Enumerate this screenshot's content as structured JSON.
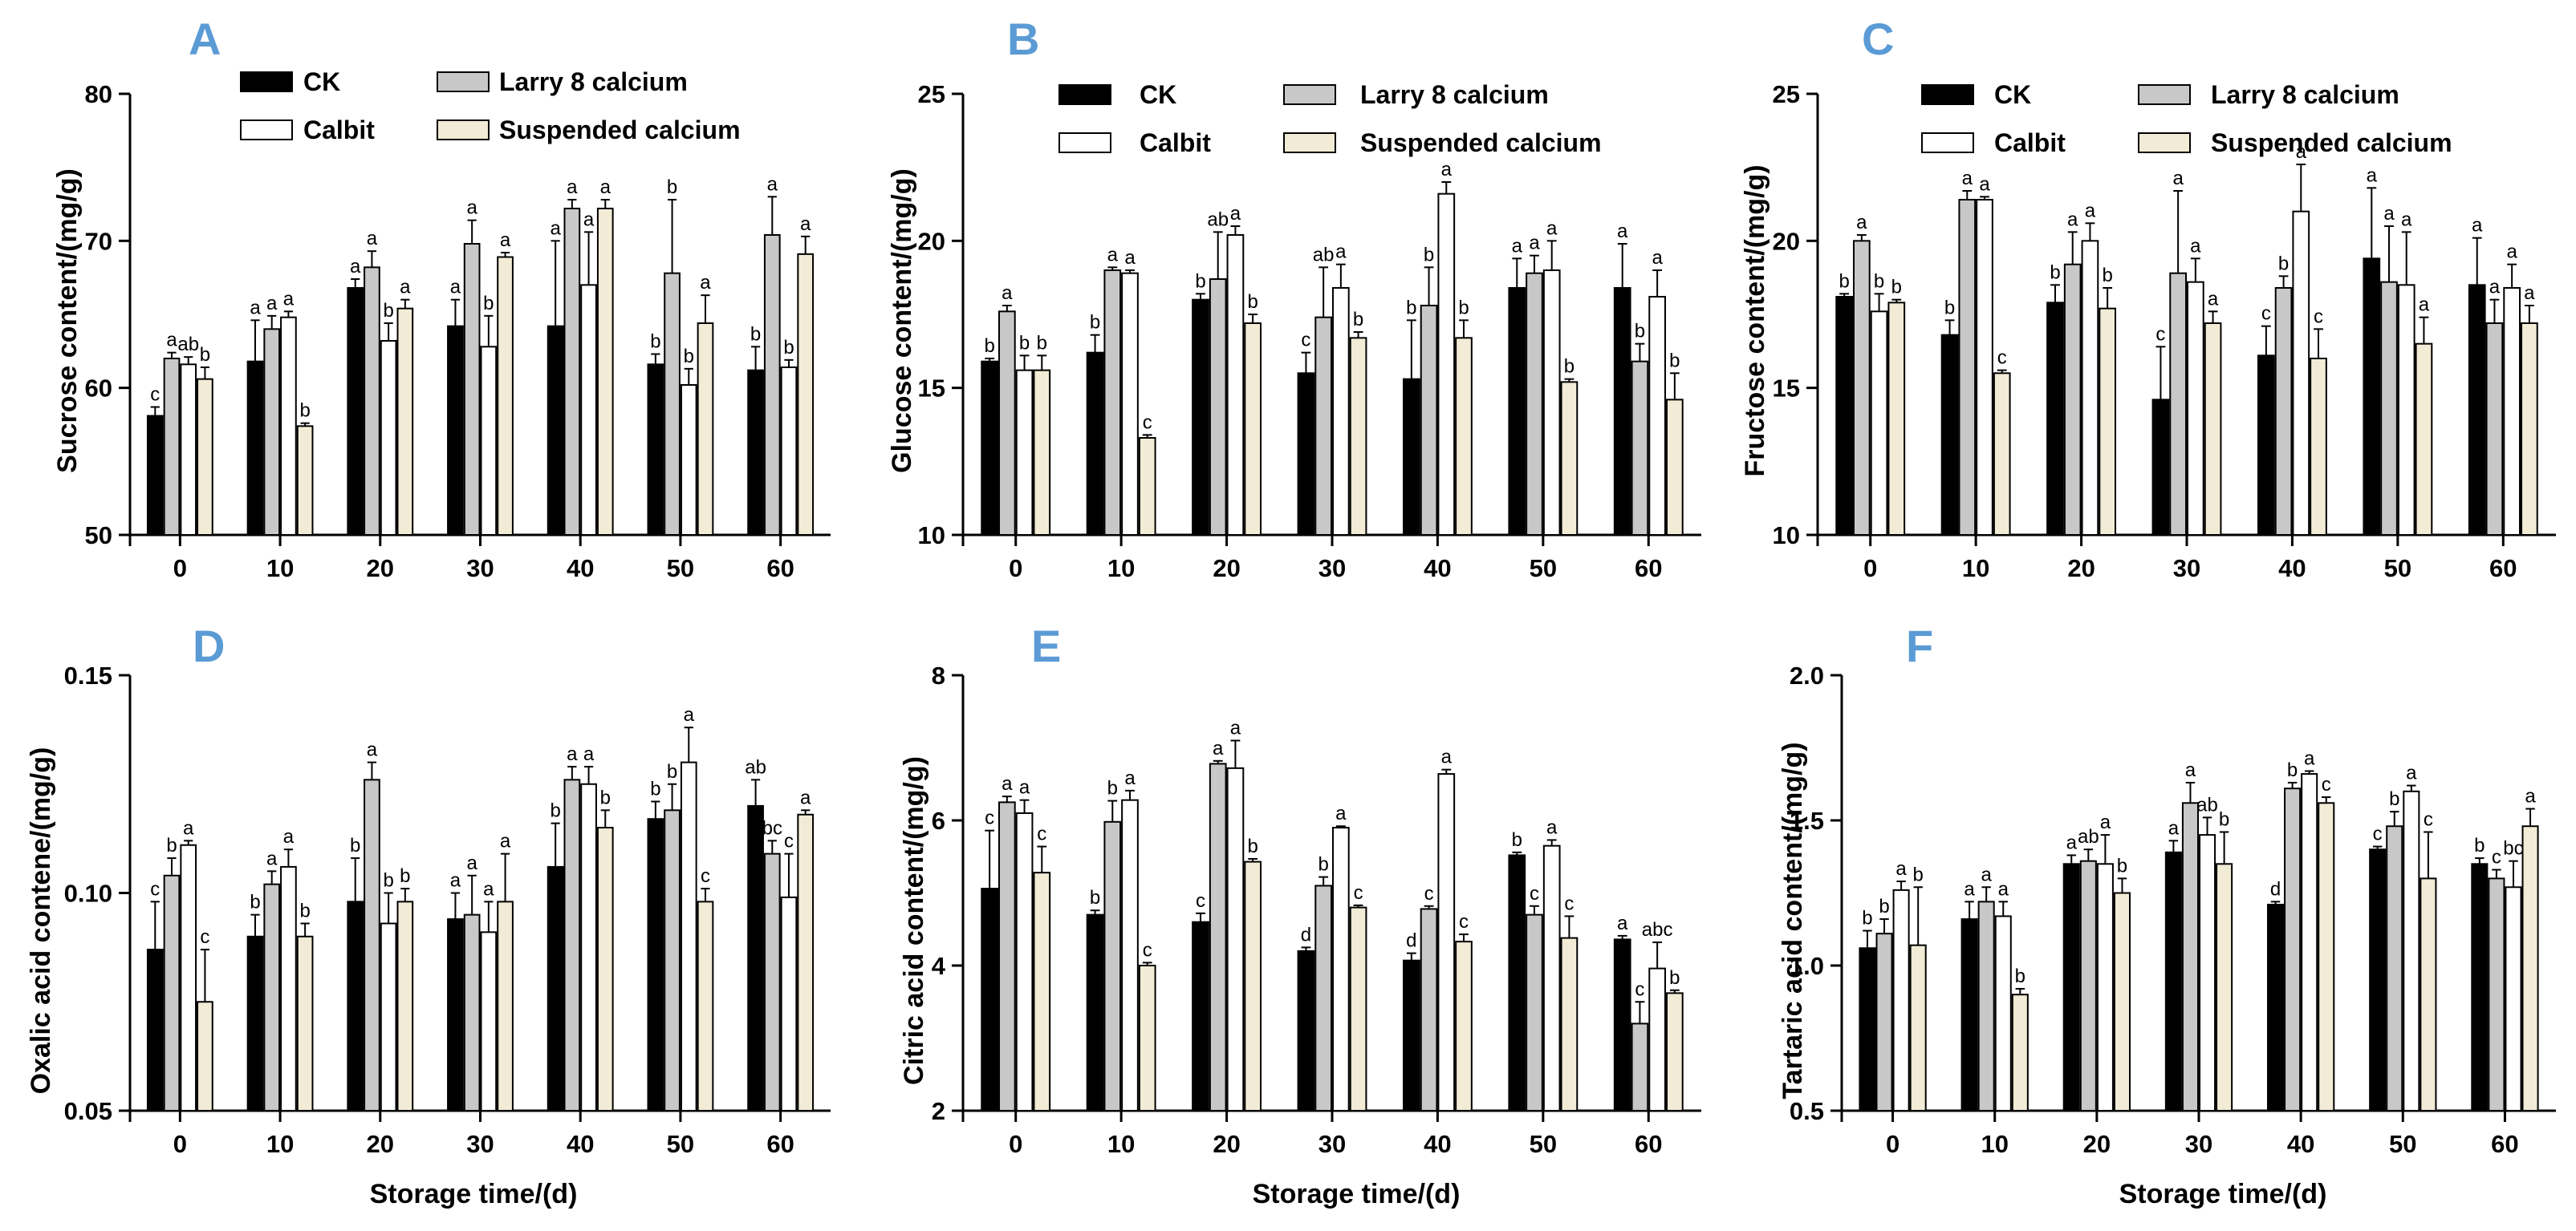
{
  "colors": {
    "letter": "#5b9bd5",
    "series": [
      "#000000",
      "#c8c8c8",
      "#ffffff",
      "#f2ebd5"
    ]
  },
  "legend_labels": [
    "CK",
    "Larry 8 calcium",
    "Calbit",
    "Suspended calcium"
  ],
  "chart_data": [
    {
      "panel": "A",
      "type": "bar",
      "ylabel": "Sucrose content/(mg/g)",
      "xlabel": "",
      "ylim": [
        50,
        80
      ],
      "yticks": [
        "50",
        "60",
        "70",
        "80"
      ],
      "categories": [
        "0",
        "10",
        "20",
        "30",
        "40",
        "50",
        "60"
      ],
      "series": [
        {
          "name": "CK",
          "values": [
            58.1,
            61.8,
            66.8,
            64.2,
            64.2,
            61.6,
            61.2
          ],
          "errors": [
            0.6,
            2.8,
            0.6,
            1.8,
            5.8,
            0.7,
            1.6
          ],
          "letters": [
            "c",
            "a",
            "a",
            "a",
            "a",
            "b",
            "b"
          ]
        },
        {
          "name": "Larry 8 calcium",
          "values": [
            62.0,
            64.0,
            68.2,
            69.8,
            72.2,
            67.8,
            70.4
          ],
          "errors": [
            0.4,
            0.9,
            1.1,
            1.6,
            0.6,
            5.0,
            2.6
          ],
          "letters": [
            "a",
            "a",
            "a",
            "a",
            "a",
            "b",
            "a"
          ]
        },
        {
          "name": "Calbit",
          "values": [
            61.6,
            64.8,
            63.2,
            62.8,
            67.0,
            60.2,
            61.4
          ],
          "errors": [
            0.5,
            0.4,
            1.2,
            2.1,
            3.6,
            1.1,
            0.5
          ],
          "letters": [
            "ab",
            "a",
            "b",
            "b",
            "a",
            "b",
            "b"
          ]
        },
        {
          "name": "Suspended calcium",
          "values": [
            60.6,
            57.4,
            65.4,
            68.9,
            72.2,
            64.4,
            69.1
          ],
          "errors": [
            0.8,
            0.2,
            0.6,
            0.3,
            0.6,
            1.9,
            1.2
          ],
          "letters": [
            "b",
            "b",
            "a",
            "a",
            "a",
            "a",
            "a"
          ]
        }
      ]
    },
    {
      "panel": "B",
      "type": "bar",
      "ylabel": "Glucose content/(mg/g)",
      "xlabel": "",
      "ylim": [
        10,
        25
      ],
      "yticks": [
        "10",
        "15",
        "20",
        "25"
      ],
      "categories": [
        "0",
        "10",
        "20",
        "30",
        "40",
        "50",
        "60"
      ],
      "series": [
        {
          "name": "CK",
          "values": [
            15.9,
            16.2,
            18.0,
            15.5,
            15.3,
            18.4,
            18.4
          ],
          "errors": [
            0.1,
            0.6,
            0.2,
            0.7,
            2.0,
            1.0,
            1.5
          ],
          "letters": [
            "b",
            "b",
            "b",
            "c",
            "b",
            "a",
            "a"
          ]
        },
        {
          "name": "Larry 8 calcium",
          "values": [
            17.6,
            19.0,
            18.7,
            17.4,
            17.8,
            18.9,
            15.9
          ],
          "errors": [
            0.2,
            0.1,
            1.6,
            1.7,
            1.3,
            0.6,
            0.6
          ],
          "letters": [
            "a",
            "a",
            "ab",
            "ab",
            "b",
            "a",
            "b"
          ]
        },
        {
          "name": "Calbit",
          "values": [
            15.6,
            18.9,
            20.2,
            18.4,
            21.6,
            19.0,
            18.1
          ],
          "errors": [
            0.5,
            0.1,
            0.3,
            0.8,
            0.4,
            1.0,
            0.9
          ],
          "letters": [
            "b",
            "a",
            "a",
            "a",
            "a",
            "a",
            "a"
          ]
        },
        {
          "name": "Suspended calcium",
          "values": [
            15.6,
            13.3,
            17.2,
            16.7,
            16.7,
            15.2,
            14.6
          ],
          "errors": [
            0.5,
            0.1,
            0.3,
            0.2,
            0.6,
            0.1,
            0.9
          ],
          "letters": [
            "b",
            "c",
            "b",
            "b",
            "b",
            "b",
            "b"
          ]
        }
      ]
    },
    {
      "panel": "C",
      "type": "bar",
      "ylabel": "Fructose content/(mg/g)",
      "xlabel": "",
      "ylim": [
        10,
        25
      ],
      "yticks": [
        "10",
        "15",
        "20",
        "25"
      ],
      "categories": [
        "0",
        "10",
        "20",
        "30",
        "40",
        "50",
        "60"
      ],
      "series": [
        {
          "name": "CK",
          "values": [
            18.1,
            16.8,
            17.9,
            14.6,
            16.1,
            19.4,
            18.5
          ],
          "errors": [
            0.1,
            0.5,
            0.6,
            1.8,
            1.0,
            2.4,
            1.6
          ],
          "letters": [
            "b",
            "b",
            "b",
            "c",
            "c",
            "a",
            "a"
          ]
        },
        {
          "name": "Larry 8 calcium",
          "values": [
            20.0,
            21.4,
            19.2,
            18.9,
            18.4,
            18.6,
            17.2
          ],
          "errors": [
            0.2,
            0.3,
            1.1,
            2.8,
            0.4,
            1.9,
            0.8
          ],
          "letters": [
            "a",
            "a",
            "a",
            "a",
            "b",
            "a",
            "a"
          ]
        },
        {
          "name": "Calbit",
          "values": [
            17.6,
            21.4,
            20.0,
            18.6,
            21.0,
            18.5,
            18.4
          ],
          "errors": [
            0.6,
            0.1,
            0.6,
            0.8,
            1.6,
            1.8,
            0.8
          ],
          "letters": [
            "b",
            "a",
            "a",
            "a",
            "a",
            "a",
            "a"
          ]
        },
        {
          "name": "Suspended calcium",
          "values": [
            17.9,
            15.5,
            17.7,
            17.2,
            16.0,
            16.5,
            17.2
          ],
          "errors": [
            0.1,
            0.1,
            0.7,
            0.4,
            1.0,
            0.9,
            0.6
          ],
          "letters": [
            "b",
            "c",
            "b",
            "a",
            "c",
            "a",
            "a"
          ]
        }
      ]
    },
    {
      "panel": "D",
      "type": "bar",
      "ylabel": "Oxalic acid contene/(mg/g)",
      "xlabel": "Storage time/(d)",
      "ylim": [
        0.05,
        0.15
      ],
      "yticks": [
        "0.05",
        "0.10",
        "0.15"
      ],
      "categories": [
        "0",
        "10",
        "20",
        "30",
        "40",
        "50",
        "60"
      ],
      "series": [
        {
          "name": "CK",
          "values": [
            0.087,
            0.09,
            0.098,
            0.094,
            0.106,
            0.117,
            0.12
          ],
          "errors": [
            0.011,
            0.005,
            0.01,
            0.006,
            0.01,
            0.004,
            0.006
          ],
          "letters": [
            "c",
            "b",
            "b",
            "a",
            "b",
            "b",
            "ab"
          ]
        },
        {
          "name": "Larry 8 calcium",
          "values": [
            0.104,
            0.102,
            0.126,
            0.095,
            0.126,
            0.119,
            0.109
          ],
          "errors": [
            0.004,
            0.003,
            0.004,
            0.009,
            0.003,
            0.006,
            0.003
          ],
          "letters": [
            "b",
            "a",
            "a",
            "a",
            "a",
            "b",
            "bc"
          ]
        },
        {
          "name": "Calbit",
          "values": [
            0.111,
            0.106,
            0.093,
            0.091,
            0.125,
            0.13,
            0.099
          ],
          "errors": [
            0.001,
            0.004,
            0.007,
            0.007,
            0.004,
            0.008,
            0.01
          ],
          "letters": [
            "a",
            "a",
            "b",
            "a",
            "a",
            "a",
            "c"
          ]
        },
        {
          "name": "Suspended calcium",
          "values": [
            0.075,
            0.09,
            0.098,
            0.098,
            0.115,
            0.098,
            0.118
          ],
          "errors": [
            0.012,
            0.003,
            0.003,
            0.011,
            0.004,
            0.003,
            0.001
          ],
          "letters": [
            "c",
            "b",
            "b",
            "a",
            "b",
            "c",
            "a"
          ]
        }
      ]
    },
    {
      "panel": "E",
      "type": "bar",
      "ylabel": "Citric acid content/(mg/g)",
      "xlabel": "Storage time/(d)",
      "ylim": [
        2,
        8
      ],
      "yticks": [
        "2",
        "4",
        "6",
        "8"
      ],
      "categories": [
        "0",
        "10",
        "20",
        "30",
        "40",
        "50",
        "60"
      ],
      "series": [
        {
          "name": "CK",
          "values": [
            5.06,
            4.7,
            4.6,
            4.2,
            4.07,
            5.52,
            4.36
          ],
          "errors": [
            0.8,
            0.06,
            0.12,
            0.05,
            0.1,
            0.04,
            0.05
          ],
          "letters": [
            "c",
            "b",
            "c",
            "d",
            "d",
            "b",
            "a"
          ]
        },
        {
          "name": "Larry 8 calcium",
          "values": [
            6.25,
            5.98,
            6.78,
            5.1,
            4.78,
            4.7,
            3.2
          ],
          "errors": [
            0.08,
            0.29,
            0.04,
            0.12,
            0.04,
            0.12,
            0.3
          ],
          "letters": [
            "a",
            "b",
            "a",
            "b",
            "c",
            "c",
            "c"
          ]
        },
        {
          "name": "Calbit",
          "values": [
            6.1,
            6.28,
            6.72,
            5.9,
            6.64,
            5.65,
            3.96
          ],
          "errors": [
            0.18,
            0.13,
            0.38,
            0.02,
            0.06,
            0.08,
            0.36
          ],
          "letters": [
            "a",
            "a",
            "a",
            "a",
            "a",
            "a",
            "abc"
          ]
        },
        {
          "name": "Suspended calcium",
          "values": [
            5.28,
            4.0,
            5.43,
            4.8,
            4.33,
            4.38,
            3.62
          ],
          "errors": [
            0.36,
            0.04,
            0.04,
            0.03,
            0.1,
            0.3,
            0.04
          ],
          "letters": [
            "c",
            "c",
            "b",
            "c",
            "c",
            "c",
            "b"
          ]
        }
      ]
    },
    {
      "panel": "F",
      "type": "bar",
      "ylabel": "Tartaric acid content/(mg/g)",
      "xlabel": "Storage time/(d)",
      "ylim": [
        0.5,
        2.0
      ],
      "yticks": [
        "0.5",
        "1.0",
        "1.5",
        "2.0"
      ],
      "categories": [
        "0",
        "10",
        "20",
        "30",
        "40",
        "50",
        "60"
      ],
      "series": [
        {
          "name": "CK",
          "values": [
            1.06,
            1.16,
            1.35,
            1.39,
            1.21,
            1.4,
            1.35
          ],
          "errors": [
            0.06,
            0.06,
            0.03,
            0.04,
            0.01,
            0.01,
            0.02
          ],
          "letters": [
            "b",
            "a",
            "a",
            "a",
            "d",
            "c",
            "b"
          ]
        },
        {
          "name": "Larry 8 calcium",
          "values": [
            1.11,
            1.22,
            1.36,
            1.56,
            1.61,
            1.48,
            1.3
          ],
          "errors": [
            0.05,
            0.05,
            0.04,
            0.07,
            0.02,
            0.05,
            0.03
          ],
          "letters": [
            "b",
            "a",
            "ab",
            "a",
            "b",
            "b",
            "c"
          ]
        },
        {
          "name": "Calbit",
          "values": [
            1.26,
            1.17,
            1.35,
            1.45,
            1.66,
            1.6,
            1.27
          ],
          "errors": [
            0.03,
            0.05,
            0.1,
            0.06,
            0.01,
            0.02,
            0.09
          ],
          "letters": [
            "a",
            "a",
            "a",
            "ab",
            "a",
            "a",
            "bc"
          ]
        },
        {
          "name": "Suspended calcium",
          "values": [
            1.07,
            0.9,
            1.25,
            1.35,
            1.56,
            1.3,
            1.48
          ],
          "errors": [
            0.2,
            0.02,
            0.05,
            0.11,
            0.02,
            0.16,
            0.06
          ],
          "letters": [
            "b",
            "b",
            "b",
            "b",
            "c",
            "c",
            "a"
          ]
        }
      ]
    }
  ]
}
